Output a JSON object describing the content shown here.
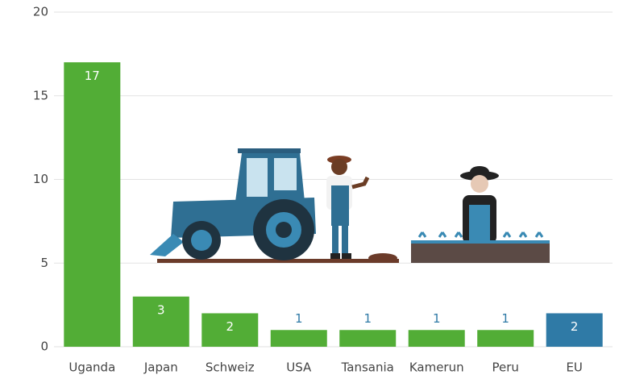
{
  "chart_data": {
    "type": "bar",
    "categories": [
      "Uganda",
      "Japan",
      "Schweiz",
      "USA",
      "Tansania",
      "Kamerun",
      "Peru",
      "EU"
    ],
    "values": [
      17,
      3,
      2,
      1,
      1,
      1,
      1,
      2
    ],
    "colors": [
      "#52ad36",
      "#52ad36",
      "#52ad36",
      "#52ad36",
      "#52ad36",
      "#52ad36",
      "#52ad36",
      "#2f7aa6"
    ],
    "ylim": [
      0,
      20
    ],
    "yticks": [
      0,
      5,
      10,
      15,
      20
    ],
    "grid": true
  }
}
